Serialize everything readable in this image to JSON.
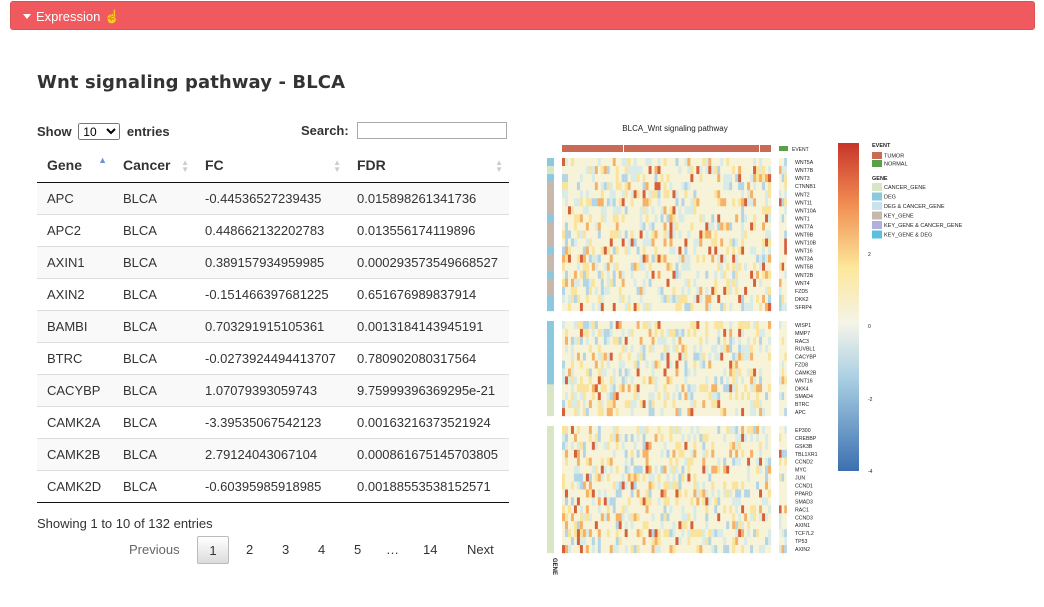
{
  "panel": {
    "title": "Expression",
    "toggle_icon": "caret-down-icon",
    "pointer_icon": "hand-pointer-icon"
  },
  "heading": "Wnt signaling pathway - BLCA",
  "length": {
    "show": "Show",
    "value": "10",
    "entries": "entries"
  },
  "search": {
    "label": "Search:",
    "value": ""
  },
  "table": {
    "columns": [
      "Gene",
      "Cancer",
      "FC",
      "FDR"
    ],
    "rows": [
      [
        "APC",
        "BLCA",
        "-0.44536527239435",
        "0.015898261341736"
      ],
      [
        "APC2",
        "BLCA",
        "0.448662132202783",
        "0.013556174119896"
      ],
      [
        "AXIN1",
        "BLCA",
        "0.389157934959985",
        "0.000293573549668527"
      ],
      [
        "AXIN2",
        "BLCA",
        "-0.151466397681225",
        "0.651676989837914"
      ],
      [
        "BAMBI",
        "BLCA",
        "0.703291915105361",
        "0.0013184143945191"
      ],
      [
        "BTRC",
        "BLCA",
        "-0.0273924494413707",
        "0.780902080317564"
      ],
      [
        "CACYBP",
        "BLCA",
        "1.07079393059743",
        "9.75999396369295e-21"
      ],
      [
        "CAMK2A",
        "BLCA",
        "-3.39535067542123",
        "0.00163216373521924"
      ],
      [
        "CAMK2B",
        "BLCA",
        "2.79124043067104",
        "0.000861675145703805"
      ],
      [
        "CAMK2D",
        "BLCA",
        "-0.60395985918985",
        "0.00188553538152571"
      ]
    ]
  },
  "info": "Showing 1 to 10 of 132 entries",
  "pagination": {
    "previous": "Previous",
    "pages": [
      "1",
      "2",
      "3",
      "4",
      "5",
      "…",
      "14"
    ],
    "next": "Next"
  },
  "heatmap": {
    "title": "BLCA_Wnt signaling pathway",
    "event_label": "EVENT",
    "gene_axis_label": "GENE",
    "groups": [
      [
        "WNT5A",
        "WNT7B",
        "WNT3",
        "CTNNB1",
        "WNT2",
        "WNT11",
        "WNT10A",
        "WNT1",
        "WNT7A",
        "WNT9B",
        "WNT10B",
        "WNT16",
        "WNT3A",
        "WNT5B",
        "WNT2B",
        "WNT4",
        "FZD5",
        "DKK2",
        "SFRP4"
      ],
      [
        "WISP1",
        "MMP7",
        "RAC3",
        "RUVBL1",
        "CACYBP",
        "FZD8",
        "CAMK2B",
        "WNT16",
        "DKK4",
        "SMAD4",
        "BTRC",
        "APC"
      ],
      [
        "EP300",
        "CREBBP",
        "GSK3B",
        "TBL1XR1",
        "CCND2",
        "MYC",
        "JUN",
        "CCND1",
        "PPARD",
        "SMAD3",
        "RAC1",
        "CCND3",
        "AXIN1",
        "TCF7L2",
        "TP53",
        "AXIN2"
      ]
    ],
    "colorbar_ticks": [
      "2",
      "0",
      "-2",
      "-4"
    ],
    "legend": {
      "event_title": "EVENT",
      "event_items": [
        {
          "label": "TUMOR",
          "color": "#c86a55"
        },
        {
          "label": "NORMAL",
          "color": "#5aa04a"
        }
      ],
      "gene_title": "GENE",
      "gene_items": [
        {
          "label": "CANCER_GENE",
          "color": "#d8e6c4"
        },
        {
          "label": "DEG",
          "color": "#8cc8de"
        },
        {
          "label": "DEG & CANCER_GENE",
          "color": "#c9e3ee"
        },
        {
          "label": "KEY_GENE",
          "color": "#c8b8ac"
        },
        {
          "label": "KEY_GENE & CANCER_GENE",
          "color": "#b3b0e0"
        },
        {
          "label": "KEY_GENE & DEG",
          "color": "#5bc0de"
        }
      ]
    }
  }
}
